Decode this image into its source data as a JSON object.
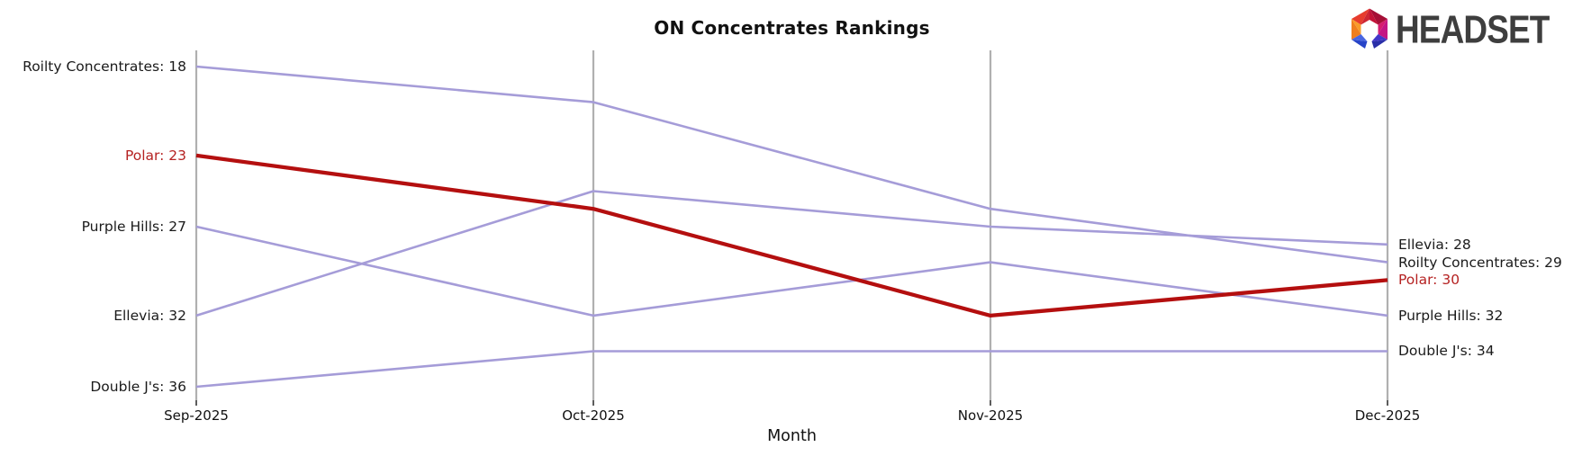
{
  "logo": {
    "text": "HEADSET"
  },
  "chart_data": {
    "type": "line",
    "subtype": "bump-ranking",
    "title": "ON Concentrates Rankings",
    "xlabel": "Month",
    "x": [
      "Sep-2025",
      "Oct-2025",
      "Nov-2025",
      "Dec-2025"
    ],
    "y_axis": {
      "inverted": true,
      "top_rank": 18,
      "bottom_rank": 36,
      "gridlines": "vertical-only"
    },
    "colors": {
      "default_line": "#a59cd8",
      "emphasis_line": "#b40f0f",
      "emphasis_label": "#b52222",
      "text": "#1a1a1a",
      "gridline": "#b0b0b0"
    },
    "series": [
      {
        "name": "Roilty Concentrates",
        "values": [
          18,
          20,
          26,
          29
        ],
        "start_label": "Roilty Concentrates: 18",
        "end_label": "Roilty Concentrates: 29",
        "color": "#a59cd8",
        "label_color": "#1a1a1a",
        "emphasis": false
      },
      {
        "name": "Polar",
        "values": [
          23,
          26,
          32,
          30
        ],
        "start_label": "Polar: 23",
        "end_label": "Polar: 30",
        "color": "#b40f0f",
        "label_color": "#b52222",
        "emphasis": true
      },
      {
        "name": "Purple Hills",
        "values": [
          27,
          32,
          29,
          32
        ],
        "start_label": "Purple Hills: 27",
        "end_label": "Purple Hills: 32",
        "color": "#a59cd8",
        "label_color": "#1a1a1a",
        "emphasis": false
      },
      {
        "name": "Ellevia",
        "values": [
          32,
          25,
          27,
          28
        ],
        "start_label": "Ellevia: 32",
        "end_label": "Ellevia: 28",
        "color": "#a59cd8",
        "label_color": "#1a1a1a",
        "emphasis": false
      },
      {
        "name": "Double J's",
        "values": [
          36,
          34,
          34,
          34
        ],
        "start_label": "Double J's: 36",
        "end_label": "Double J's: 34",
        "color": "#a59cd8",
        "label_color": "#1a1a1a",
        "emphasis": false
      }
    ]
  }
}
